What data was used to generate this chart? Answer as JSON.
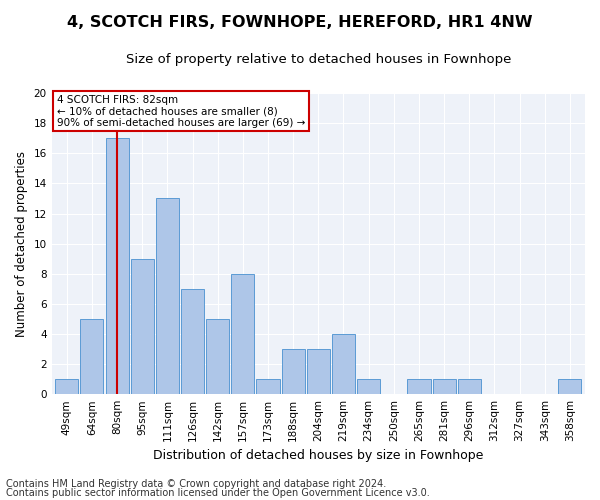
{
  "title": "4, SCOTCH FIRS, FOWNHOPE, HEREFORD, HR1 4NW",
  "subtitle": "Size of property relative to detached houses in Fownhope",
  "xlabel": "Distribution of detached houses by size in Fownhope",
  "ylabel": "Number of detached properties",
  "categories": [
    "49sqm",
    "64sqm",
    "80sqm",
    "95sqm",
    "111sqm",
    "126sqm",
    "142sqm",
    "157sqm",
    "173sqm",
    "188sqm",
    "204sqm",
    "219sqm",
    "234sqm",
    "250sqm",
    "265sqm",
    "281sqm",
    "296sqm",
    "312sqm",
    "327sqm",
    "343sqm",
    "358sqm"
  ],
  "values": [
    1,
    5,
    17,
    9,
    13,
    7,
    5,
    8,
    1,
    3,
    3,
    4,
    1,
    0,
    1,
    1,
    1,
    0,
    0,
    0,
    1
  ],
  "bar_color": "#aec6e8",
  "bar_edge_color": "#5b9bd5",
  "highlight_bar_index": 2,
  "highlight_line_color": "#cc0000",
  "ylim": [
    0,
    20
  ],
  "yticks": [
    0,
    2,
    4,
    6,
    8,
    10,
    12,
    14,
    16,
    18,
    20
  ],
  "annotation_text": "4 SCOTCH FIRS: 82sqm\n← 10% of detached houses are smaller (8)\n90% of semi-detached houses are larger (69) →",
  "annotation_box_color": "#cc0000",
  "footnote1": "Contains HM Land Registry data © Crown copyright and database right 2024.",
  "footnote2": "Contains public sector information licensed under the Open Government Licence v3.0.",
  "bg_color": "#eef2f9",
  "grid_color": "#ffffff",
  "title_fontsize": 11.5,
  "subtitle_fontsize": 9.5,
  "ylabel_fontsize": 8.5,
  "xlabel_fontsize": 9,
  "tick_fontsize": 7.5,
  "footnote_fontsize": 7
}
